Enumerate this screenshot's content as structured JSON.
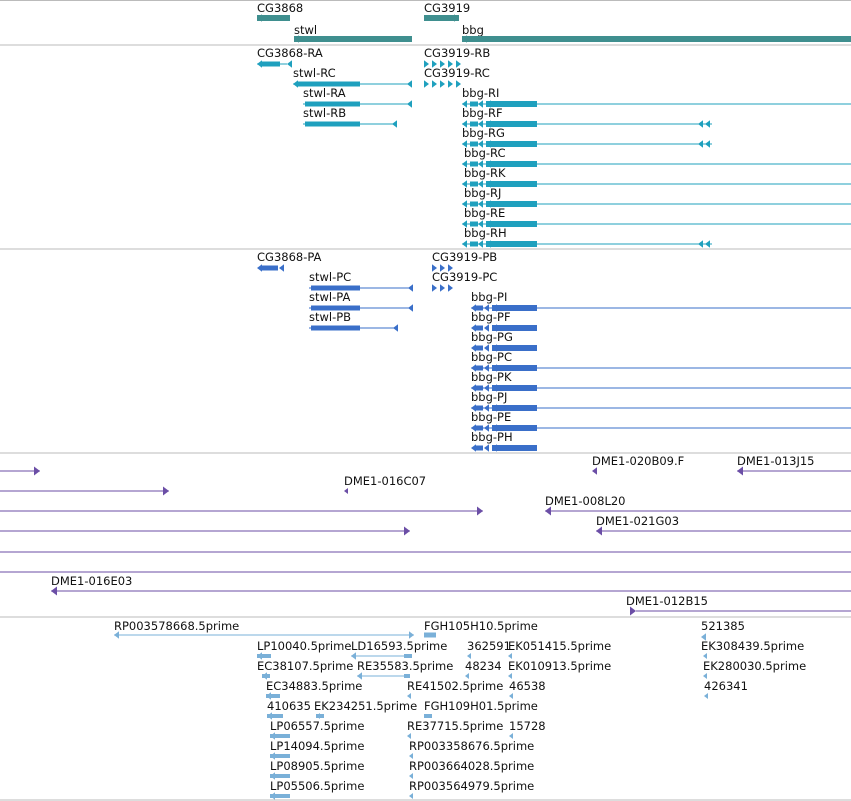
{
  "colors": {
    "gene": "#3f8f8f",
    "transcript": "#1fa0be",
    "protein": "#3a6fc9",
    "clone": "#6b4ea6",
    "est": "#7ab0d8",
    "separator": "#bbbbbb"
  },
  "genes": [
    "CG3868",
    "stwl",
    "CG3919",
    "bbg"
  ],
  "transcripts": [
    "CG3868-RA",
    "stwl-RC",
    "stwl-RA",
    "stwl-RB",
    "CG3919-RB",
    "CG3919-RC",
    "bbg-RI",
    "bbg-RF",
    "bbg-RG",
    "bbg-RC",
    "bbg-RK",
    "bbg-RJ",
    "bbg-RE",
    "bbg-RH"
  ],
  "proteins": [
    "CG3868-PA",
    "stwl-PC",
    "stwl-PA",
    "stwl-PB",
    "CG3919-PB",
    "CG3919-PC",
    "bbg-PI",
    "bbg-PF",
    "bbg-PG",
    "bbg-PC",
    "bbg-PK",
    "bbg-PJ",
    "bbg-PE",
    "bbg-PH"
  ],
  "clones": [
    "DME1-020B09.F",
    "DME1-013J15",
    "DME1-016C07",
    "DME1-008L20",
    "DME1-021G03",
    "DME1-016E03",
    "DME1-012B15"
  ],
  "ests": [
    "RP003578668.5prime",
    "FGH105H10.5prime",
    "521385",
    "LP10040.5prime",
    "LD16593.5prime",
    "362591",
    "EK051415.5prime",
    "EK308439.5prime",
    "EC38107.5prime",
    "RE35583.5prime",
    "48234",
    "EK010913.5prime",
    "EK280030.5prime",
    "EC34883.5prime",
    "RE41502.5prime",
    "46538",
    "426341",
    "410635",
    "EK234251.5prime",
    "FGH109H01.5prime",
    "LP06557.5prime",
    "RE37715.5prime",
    "15728",
    "LP14094.5prime",
    "RP003358676.5prime",
    "LP08905.5prime",
    "RP003664028.5prime",
    "LP05506.5prime",
    "RP003564979.5prime"
  ]
}
